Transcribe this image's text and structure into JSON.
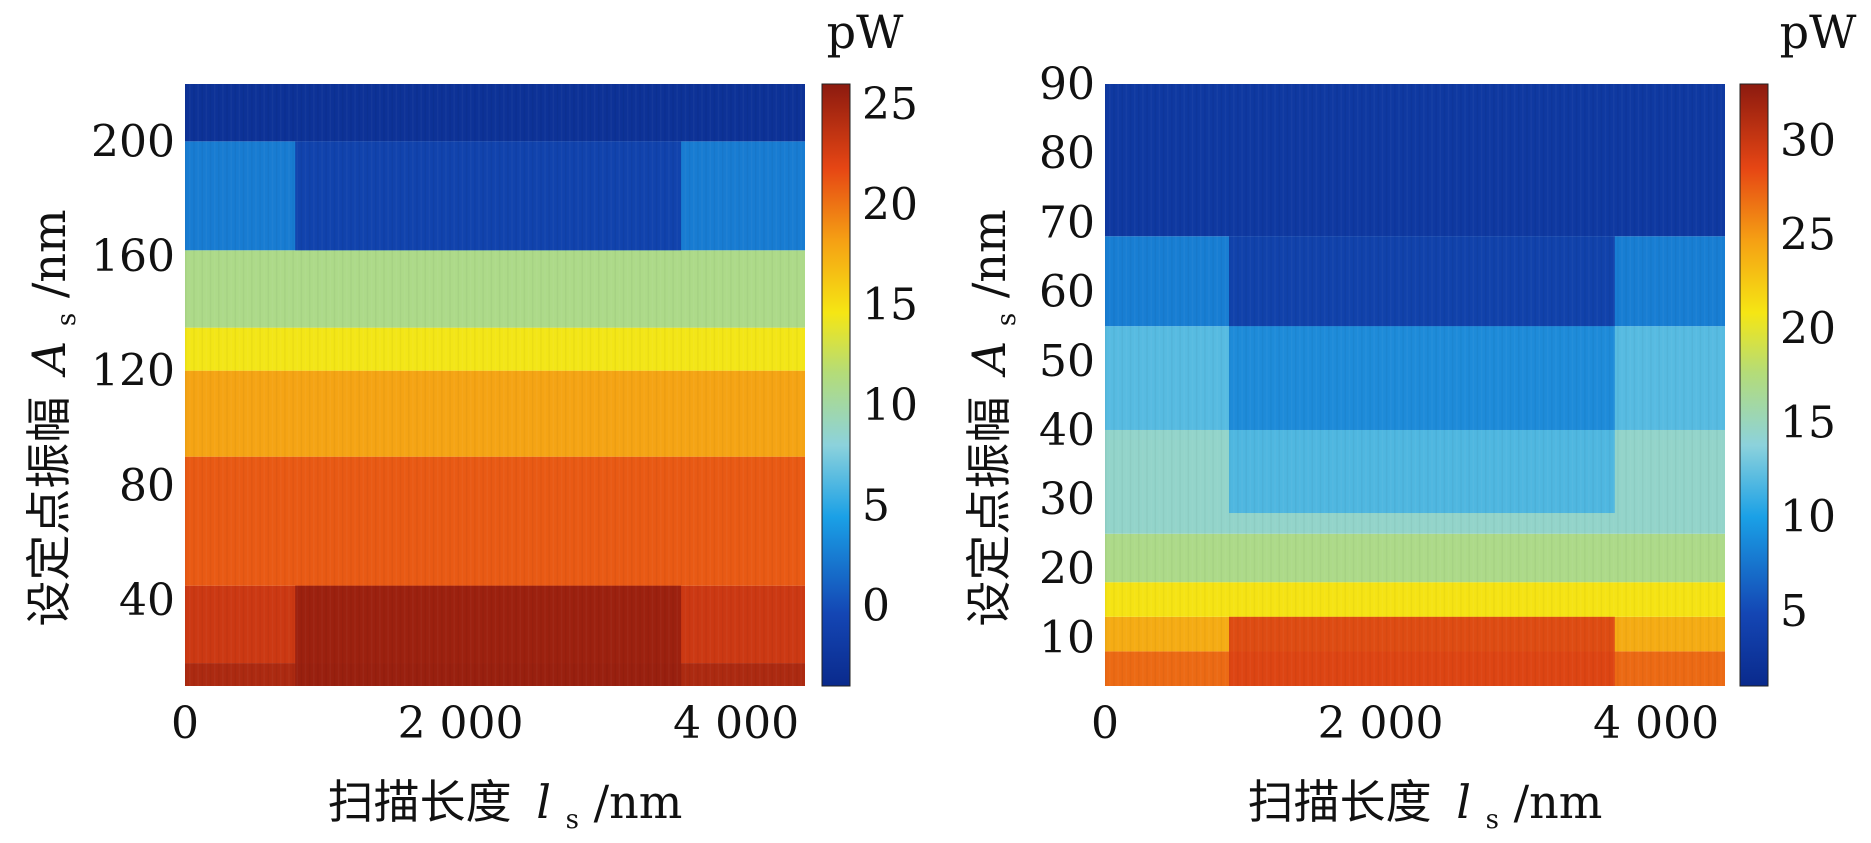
{
  "chart_data": [
    {
      "type": "heatmap",
      "x_axis": {
        "label_text": "扫描长度",
        "label_symbol": "l",
        "label_subscript": "s",
        "label_unit": "/nm",
        "range": [
          0,
          4500
        ],
        "ticks": [
          0,
          2000,
          4000
        ],
        "tick_labels": [
          "0",
          "2 000",
          "4 000"
        ]
      },
      "y_axis": {
        "label_text": "设定点振幅",
        "label_symbol": "A",
        "label_subscript": "s",
        "label_unit": "/nm",
        "range": [
          10,
          220
        ],
        "ticks": [
          40,
          80,
          120,
          160,
          200
        ],
        "tick_labels": [
          "40",
          "80",
          "120",
          "160",
          "200"
        ]
      },
      "colorbar": {
        "unit": "pW",
        "range": [
          -4,
          26
        ],
        "ticks": [
          0,
          5,
          10,
          15,
          20,
          25
        ],
        "tick_labels": [
          "0",
          "5",
          "10",
          "15",
          "20",
          "25"
        ]
      },
      "value_bands": [
        {
          "y_from": 10,
          "y_to": 18,
          "value": 24.5
        },
        {
          "y_from": 18,
          "y_to": 45,
          "value": 23.0
        },
        {
          "y_from": 45,
          "y_to": 90,
          "value": 21.0
        },
        {
          "y_from": 90,
          "y_to": 120,
          "value": 18.0
        },
        {
          "y_from": 120,
          "y_to": 135,
          "value": 14.5
        },
        {
          "y_from": 135,
          "y_to": 162,
          "value": 11.0
        },
        {
          "y_from": 162,
          "y_to": 200,
          "value": 2.5
        },
        {
          "y_from": 200,
          "y_to": 220,
          "value": -3.0
        }
      ],
      "center_anomalies": [
        {
          "x_from": 800,
          "x_to": 3600,
          "y_from": 10,
          "y_to": 45,
          "value": 25.5
        },
        {
          "x_from": 800,
          "x_to": 3600,
          "y_from": 162,
          "y_to": 200,
          "value": -1.5
        }
      ]
    },
    {
      "type": "heatmap",
      "x_axis": {
        "label_text": "扫描长度",
        "label_symbol": "l",
        "label_subscript": "s",
        "label_unit": "/nm",
        "range": [
          0,
          4500
        ],
        "ticks": [
          0,
          2000,
          4000
        ],
        "tick_labels": [
          "0",
          "2 000",
          "4 000"
        ]
      },
      "y_axis": {
        "label_text": "设定点振幅",
        "label_symbol": "A",
        "label_subscript": "s",
        "label_unit": "/nm",
        "range": [
          3,
          90
        ],
        "ticks": [
          10,
          20,
          30,
          40,
          50,
          60,
          70,
          80,
          90
        ],
        "tick_labels": [
          "10",
          "20",
          "30",
          "40",
          "50",
          "60",
          "70",
          "80",
          "90"
        ]
      },
      "colorbar": {
        "unit": "pW",
        "range": [
          1,
          33
        ],
        "ticks": [
          5,
          10,
          15,
          20,
          25,
          30
        ],
        "tick_labels": [
          "5",
          "10",
          "15",
          "20",
          "25",
          "30"
        ]
      },
      "value_bands": [
        {
          "y_from": 3,
          "y_to": 8,
          "value": 27.0
        },
        {
          "y_from": 8,
          "y_to": 13,
          "value": 24.0
        },
        {
          "y_from": 13,
          "y_to": 18,
          "value": 21.0
        },
        {
          "y_from": 18,
          "y_to": 25,
          "value": 17.0
        },
        {
          "y_from": 25,
          "y_to": 40,
          "value": 14.5
        },
        {
          "y_from": 40,
          "y_to": 55,
          "value": 12.0
        },
        {
          "y_from": 55,
          "y_to": 68,
          "value": 8.0
        },
        {
          "y_from": 68,
          "y_to": 90,
          "value": 3.0
        }
      ],
      "center_anomalies": [
        {
          "x_from": 900,
          "x_to": 3700,
          "y_from": 3,
          "y_to": 13,
          "value": 29.0
        },
        {
          "x_from": 900,
          "x_to": 3700,
          "y_from": 28,
          "y_to": 40,
          "value": 11.5
        },
        {
          "x_from": 900,
          "x_to": 3700,
          "y_from": 40,
          "y_to": 55,
          "value": 8.5
        },
        {
          "x_from": 900,
          "x_to": 3700,
          "y_from": 55,
          "y_to": 68,
          "value": 3.5
        }
      ]
    }
  ]
}
